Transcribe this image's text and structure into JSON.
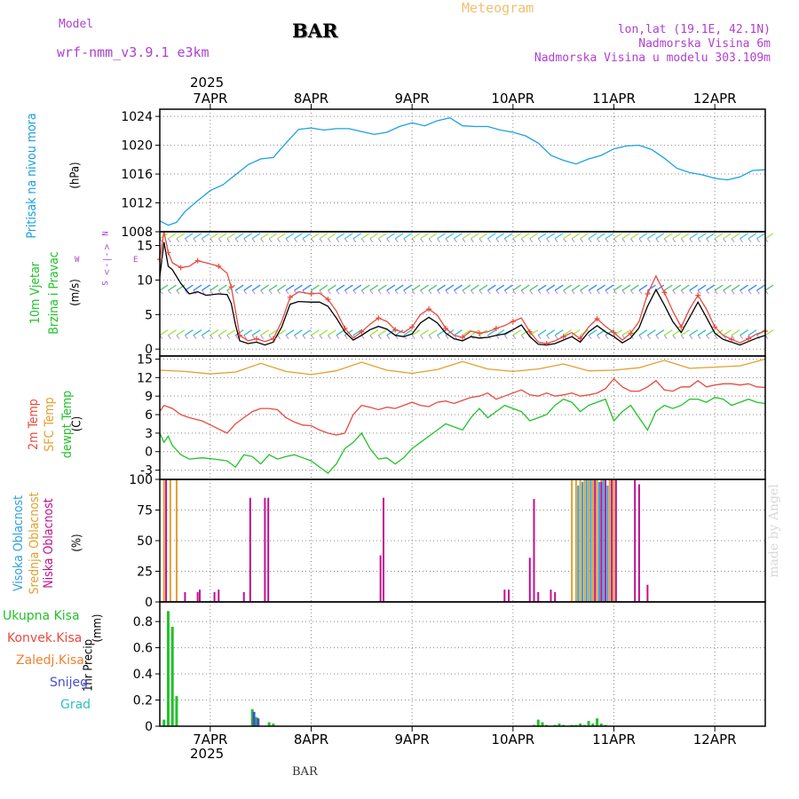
{
  "header": {
    "model_label": "Model",
    "model_name": "wrf-nmm_v3.9.1 e3km",
    "station": "BAR",
    "meteogram": "Meteogram",
    "lonlat": "lon,lat (19.1E, 42.1N)",
    "elevation": "Nadmorska Visina 6m",
    "model_elevation": "Nadmorska Visina u modelu 303.109m",
    "year": "2025",
    "footer_station": "BAR",
    "watermark": "made by Angel"
  },
  "colors": {
    "pressure": "#1ba1e2",
    "temp2m": "#e84a3f",
    "sfc": "#e0a030",
    "dewpt": "#22c22a",
    "high_cloud": "#30a0e0",
    "mid_cloud": "#e0a030",
    "low_cloud": "#c01090",
    "total_precip": "#22c22a",
    "conv_precip": "#e84a3f",
    "frz_precip": "#f08030",
    "snow": "#4a4ad8",
    "hail": "#30c0c0",
    "wind_label": "#b040d0"
  },
  "chart_data": [
    {
      "id": "pressure",
      "type": "line",
      "title": "Pritisak na nivou mora",
      "unit_label": "(hPa)",
      "x_unit": "hours from 2025-04-06 12:00",
      "xlim": [
        0,
        144
      ],
      "ylim": [
        1008,
        1025
      ],
      "yticks": [
        1008,
        1012,
        1016,
        1020,
        1024
      ],
      "x_tick_labels": [
        "7APR",
        "8APR",
        "9APR",
        "10APR",
        "11APR",
        "12APR"
      ],
      "x_tick_hours": [
        12,
        36,
        60,
        84,
        108,
        132
      ],
      "series": [
        {
          "name": "Pritisak na nivou mora",
          "x": [
            0,
            2,
            4,
            6,
            9,
            12,
            15,
            18,
            21,
            24,
            27,
            30,
            33,
            36,
            39,
            42,
            45,
            48,
            51,
            54,
            57,
            60,
            63,
            66,
            69,
            72,
            75,
            78,
            81,
            84,
            87,
            90,
            93,
            96,
            99,
            102,
            105,
            108,
            111,
            114,
            117,
            120,
            123,
            126,
            129,
            132,
            135,
            138,
            141,
            144
          ],
          "values": [
            1009.5,
            1008.9,
            1009.3,
            1010.8,
            1012.3,
            1013.7,
            1014.5,
            1015.9,
            1017.3,
            1018.1,
            1018.3,
            1020.3,
            1022.2,
            1022.4,
            1022.1,
            1022.3,
            1022.3,
            1021.9,
            1021.5,
            1021.8,
            1022.6,
            1023.1,
            1022.7,
            1023.4,
            1023.8,
            1022.7,
            1022.6,
            1022.6,
            1022.1,
            1021.8,
            1021.3,
            1020.3,
            1018.6,
            1017.9,
            1017.4,
            1018.1,
            1018.6,
            1019.5,
            1019.9,
            1020.0,
            1019.4,
            1018.2,
            1016.8,
            1016.2,
            1015.9,
            1015.4,
            1015.2,
            1015.6,
            1016.5,
            1016.6
          ]
        }
      ]
    },
    {
      "id": "wind",
      "type": "line",
      "title": "10m Vjetar",
      "title2": "Brzina i Pravac",
      "unit_label": "(m/s)",
      "compass_label": "< - | - >",
      "direction_letters": [
        "N",
        "W",
        "E",
        "S"
      ],
      "xlim": [
        0,
        144
      ],
      "ylim": [
        -1,
        17
      ],
      "yticks": [
        0,
        5,
        10,
        15
      ],
      "series": [
        {
          "name": "Brzina",
          "x": [
            0,
            1,
            2,
            3,
            5,
            7,
            9,
            11,
            14,
            16,
            17,
            18,
            19,
            21,
            23,
            25,
            27,
            29,
            31,
            33,
            36,
            38,
            40,
            42,
            44,
            46,
            48,
            50,
            52,
            54,
            56,
            58,
            60,
            62,
            64,
            66,
            68,
            70,
            72,
            74,
            76,
            78,
            80,
            82,
            84,
            86,
            88,
            90,
            92,
            94,
            96,
            98,
            100,
            102,
            104,
            106,
            108,
            110,
            112,
            114,
            116,
            118,
            120,
            122,
            124,
            126,
            128,
            130,
            132,
            134,
            136,
            138,
            140,
            142,
            144
          ],
          "values": [
            10.5,
            15.5,
            12.0,
            11.5,
            9.5,
            8.0,
            8.3,
            7.8,
            8.0,
            7.9,
            6.6,
            3.5,
            1.2,
            0.8,
            1.0,
            0.6,
            1.0,
            3.2,
            6.5,
            6.9,
            6.8,
            6.8,
            6.2,
            4.5,
            2.5,
            1.3,
            2.0,
            2.8,
            3.3,
            2.9,
            2.0,
            1.8,
            2.2,
            3.8,
            4.6,
            3.8,
            2.3,
            1.5,
            1.2,
            1.8,
            1.6,
            1.7,
            2.0,
            2.2,
            2.8,
            3.5,
            1.8,
            0.7,
            0.6,
            0.8,
            1.3,
            1.8,
            1.0,
            2.5,
            3.4,
            2.5,
            1.8,
            0.9,
            1.6,
            3.1,
            6.2,
            8.6,
            6.4,
            4.0,
            2.4,
            4.6,
            6.8,
            4.6,
            2.3,
            1.4,
            1.0,
            0.6,
            1.1,
            1.6,
            2.0
          ]
        },
        {
          "name": "Udari",
          "x": [
            0,
            1,
            2,
            3,
            5,
            7,
            9,
            11,
            14,
            16,
            17,
            18,
            19,
            21,
            23,
            25,
            27,
            29,
            31,
            33,
            36,
            38,
            40,
            42,
            44,
            46,
            48,
            50,
            52,
            54,
            56,
            58,
            60,
            62,
            64,
            66,
            68,
            70,
            72,
            74,
            76,
            78,
            80,
            82,
            84,
            86,
            88,
            90,
            92,
            94,
            96,
            98,
            100,
            102,
            104,
            106,
            108,
            110,
            112,
            114,
            116,
            118,
            120,
            122,
            124,
            126,
            128,
            130,
            132,
            134,
            136,
            138,
            140,
            142,
            144
          ],
          "values": [
            13.0,
            17.0,
            14.0,
            12.5,
            11.8,
            12.0,
            12.8,
            12.5,
            12.0,
            11.0,
            9.0,
            5.5,
            2.0,
            1.2,
            1.5,
            1.1,
            1.5,
            4.0,
            7.5,
            8.3,
            8.0,
            8.1,
            7.2,
            5.5,
            3.0,
            1.6,
            2.5,
            3.6,
            4.5,
            4.0,
            2.8,
            2.4,
            3.2,
            5.0,
            5.8,
            4.9,
            3.0,
            2.0,
            1.7,
            2.6,
            2.3,
            2.5,
            3.0,
            3.4,
            4.0,
            4.5,
            2.5,
            1.0,
            0.8,
            1.2,
            1.8,
            2.4,
            1.5,
            3.2,
            4.4,
            3.3,
            2.4,
            1.3,
            2.3,
            4.0,
            8.0,
            10.6,
            8.2,
            5.5,
            3.2,
            5.8,
            7.8,
            5.8,
            3.2,
            2.0,
            1.4,
            0.9,
            1.5,
            2.2,
            2.6
          ]
        }
      ]
    },
    {
      "id": "temperature",
      "type": "line",
      "title": "2m Temp",
      "title2": "SFC Temp",
      "title3": "dewpt Temp",
      "unit_label": "(C)",
      "xlim": [
        0,
        144
      ],
      "ylim": [
        -4.5,
        15.5
      ],
      "yticks": [
        -3,
        0,
        3,
        6,
        9,
        12,
        15
      ],
      "series": [
        {
          "name": "SFC Temp",
          "x": [
            0,
            6,
            12,
            18,
            24,
            30,
            36,
            42,
            48,
            54,
            60,
            66,
            72,
            78,
            84,
            90,
            96,
            102,
            108,
            114,
            120,
            126,
            132,
            138,
            144
          ],
          "values": [
            13.2,
            13.0,
            12.6,
            12.9,
            14.3,
            13.0,
            12.5,
            13.1,
            14.5,
            13.2,
            12.7,
            13.3,
            14.6,
            13.4,
            13.0,
            13.4,
            14.2,
            13.1,
            13.2,
            13.6,
            14.8,
            13.5,
            13.7,
            13.9,
            15.0
          ]
        },
        {
          "name": "2m Temp",
          "x": [
            0,
            1,
            3,
            5,
            7,
            10,
            13,
            16,
            18,
            20,
            22,
            24,
            26,
            28,
            30,
            32,
            34,
            36,
            38,
            40,
            42,
            44,
            46,
            48,
            50,
            52,
            54,
            56,
            58,
            60,
            62,
            64,
            66,
            68,
            70,
            72,
            74,
            76,
            78,
            80,
            82,
            84,
            86,
            88,
            90,
            92,
            94,
            96,
            98,
            100,
            102,
            104,
            106,
            108,
            110,
            112,
            114,
            116,
            118,
            120,
            122,
            124,
            126,
            128,
            130,
            132,
            134,
            136,
            138,
            140,
            142,
            144
          ],
          "values": [
            6.5,
            7.5,
            7.0,
            6.0,
            5.5,
            5.0,
            4.0,
            3.0,
            4.5,
            5.5,
            6.5,
            7.0,
            7.0,
            6.8,
            5.5,
            4.8,
            4.3,
            4.2,
            3.5,
            3.0,
            2.7,
            3.0,
            6.0,
            7.5,
            7.2,
            6.8,
            7.2,
            7.0,
            7.5,
            8.0,
            7.5,
            7.3,
            8.0,
            8.2,
            7.8,
            8.3,
            8.8,
            9.0,
            9.5,
            8.5,
            9.0,
            9.5,
            10.0,
            9.2,
            9.0,
            9.5,
            9.0,
            9.2,
            9.5,
            9.0,
            9.2,
            9.5,
            10.2,
            11.8,
            10.5,
            9.8,
            9.8,
            10.5,
            11.5,
            10.0,
            9.8,
            10.5,
            10.5,
            11.5,
            10.5,
            10.8,
            11.0,
            11.0,
            10.8,
            11.0,
            10.5,
            10.4
          ]
        },
        {
          "name": "dewpt Temp",
          "x": [
            0,
            1,
            2,
            3,
            5,
            7,
            10,
            13,
            16,
            18,
            20,
            22,
            24,
            26,
            28,
            30,
            32,
            34,
            36,
            38,
            40,
            42,
            44,
            46,
            48,
            50,
            52,
            54,
            56,
            58,
            60,
            62,
            64,
            66,
            68,
            70,
            72,
            74,
            76,
            78,
            80,
            82,
            84,
            86,
            88,
            90,
            92,
            94,
            96,
            98,
            100,
            102,
            104,
            106,
            108,
            110,
            112,
            114,
            116,
            118,
            120,
            122,
            124,
            126,
            128,
            130,
            132,
            134,
            136,
            138,
            140,
            142,
            144
          ],
          "values": [
            3.0,
            1.5,
            2.5,
            1.0,
            -0.5,
            -1.2,
            -1.0,
            -1.2,
            -1.5,
            -2.5,
            -0.5,
            -0.8,
            -2.0,
            -0.5,
            -1.2,
            -0.8,
            -0.5,
            -1.0,
            -1.5,
            -2.5,
            -3.5,
            -2.0,
            0.5,
            1.5,
            3.0,
            0.5,
            -1.2,
            -1.0,
            -2.0,
            -1.0,
            0.5,
            1.5,
            2.5,
            3.5,
            4.5,
            4.0,
            3.5,
            5.5,
            7.0,
            5.5,
            6.5,
            7.5,
            7.0,
            6.5,
            5.0,
            5.5,
            6.0,
            7.5,
            8.5,
            8.0,
            6.5,
            7.5,
            8.0,
            8.5,
            5.0,
            6.5,
            7.5,
            5.5,
            3.5,
            6.5,
            7.5,
            7.0,
            7.5,
            8.5,
            8.5,
            8.0,
            8.8,
            8.5,
            7.5,
            8.0,
            8.5,
            8.0,
            7.8
          ]
        }
      ]
    },
    {
      "id": "clouds",
      "type": "bar",
      "title": "Visoka Oblacnost",
      "title2": "Srednja Oblacnost",
      "title3": "Niska Oblacnost",
      "unit_label": "(%)",
      "xlim": [
        0,
        144
      ],
      "ylim": [
        0,
        100
      ],
      "yticks": [
        0,
        25,
        50,
        75,
        100
      ],
      "series": [
        {
          "name": "Srednja Oblacnost",
          "x": [
            1,
            2.5,
            4,
            98,
            99,
            100,
            101,
            102,
            103,
            104,
            105,
            106,
            107,
            108
          ],
          "values": [
            100,
            100,
            100,
            100,
            100,
            100,
            100,
            100,
            100,
            100,
            100,
            100,
            100,
            100
          ]
        },
        {
          "name": "Visoka Oblacnost",
          "x": [
            99.5,
            100.5,
            101.5,
            102.5,
            104.5,
            105.5,
            106.5
          ],
          "values": [
            95,
            98,
            100,
            100,
            98,
            100,
            95
          ]
        },
        {
          "name": "Niska Oblacnost",
          "x": [
            1.5,
            6,
            9,
            9.5,
            13,
            14,
            20,
            21.5,
            25,
            25.8,
            52.5,
            53.2,
            82,
            83,
            88,
            89,
            90,
            93,
            94,
            103.5,
            105,
            106,
            107.5,
            108.5,
            113,
            114,
            116
          ],
          "values": [
            100,
            8,
            8,
            10,
            8,
            10,
            8,
            85,
            85,
            85,
            38,
            85,
            10,
            10,
            36,
            84,
            8,
            10,
            8,
            100,
            98,
            100,
            100,
            100,
            100,
            96,
            14
          ]
        }
      ]
    },
    {
      "id": "precip",
      "type": "bar",
      "title": "1hr Precip",
      "unit_label": "(mm)",
      "legend": [
        "Ukupna Kisa",
        "Konvek.Kisa",
        "Zaledj.Kisa",
        "Snijeg",
        "Grad"
      ],
      "xlim": [
        0,
        144
      ],
      "ylim": [
        0,
        0.95
      ],
      "yticks": [
        0,
        0.2,
        0.4,
        0.6,
        0.8
      ],
      "series": [
        {
          "name": "Ukupna Kisa",
          "x": [
            1,
            2,
            3,
            4,
            22,
            23,
            26,
            27,
            89,
            90,
            91,
            92,
            94,
            95,
            96,
            98,
            99,
            100,
            101,
            102,
            103,
            104,
            105,
            106
          ],
          "values": [
            0.05,
            0.88,
            0.76,
            0.23,
            0.13,
            0.07,
            0.03,
            0.02,
            0.01,
            0.05,
            0.03,
            0.01,
            0.01,
            0.02,
            0.01,
            0.01,
            0.01,
            0.02,
            0.01,
            0.04,
            0.02,
            0.06,
            0.02,
            0.01
          ]
        },
        {
          "name": "Snijeg",
          "x": [
            22.4,
            23.4
          ],
          "values": [
            0.11,
            0.06
          ]
        }
      ]
    }
  ]
}
